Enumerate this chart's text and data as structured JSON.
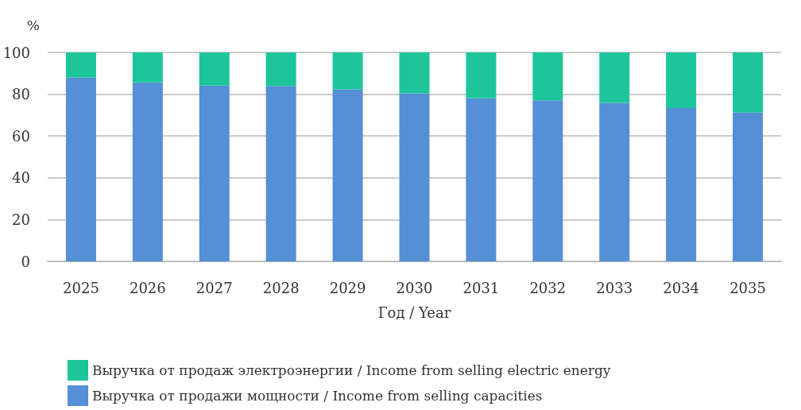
{
  "chart_data": {
    "type": "bar",
    "stacked": true,
    "ylabel": "%",
    "xlabel": "Год / Year",
    "categories": [
      "2025",
      "2026",
      "2027",
      "2028",
      "2029",
      "2030",
      "2031",
      "2032",
      "2033",
      "2034",
      "2035"
    ],
    "series": [
      {
        "name": "Выручка от продажи мощности / Income from selling capacities",
        "color": "#558fd6",
        "values": [
          88,
          85.6,
          84.1,
          83.9,
          82.4,
          80.4,
          78.1,
          77.1,
          75.9,
          73.4,
          71.2
        ]
      },
      {
        "name": "Выручка от продаж электроэнергии / Income from selling electric energy",
        "color": "#1cc69a",
        "values": [
          12,
          14.4,
          15.9,
          16.1,
          17.6,
          19.6,
          21.9,
          22.9,
          24.1,
          26.6,
          28.8
        ]
      }
    ],
    "ylim": [
      0,
      100
    ],
    "yticks": [
      0,
      20,
      40,
      60,
      80,
      100
    ],
    "grid": "y",
    "legend": "bottom left"
  }
}
